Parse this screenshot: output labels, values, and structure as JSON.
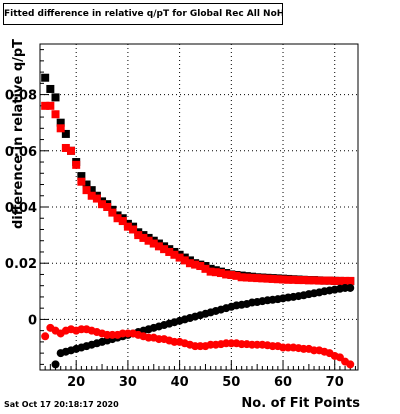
{
  "title": "Fitted difference in relative q/pT  for Global Rec All NoHits",
  "timestamp": "Sat Oct 17 20:18:17 2020",
  "chart_data": {
    "type": "scatter",
    "title": "Fitted difference in relative q/pT  for Global Rec All NoHits",
    "xlabel": "No. of Fit Points",
    "ylabel": "difference in relative q/pT",
    "xlim": [
      13,
      74.5
    ],
    "ylim": [
      -0.018,
      0.098
    ],
    "x_ticks": [
      20,
      30,
      40,
      50,
      60,
      70
    ],
    "x_tick_labels": [
      "20",
      "30",
      "40",
      "50",
      "60",
      "70"
    ],
    "y_ticks": [
      0,
      0.02,
      0.04,
      0.06,
      0.08
    ],
    "y_tick_labels": [
      "0",
      "0.02",
      "0.04",
      "0.06",
      "0.08"
    ],
    "grid": true,
    "legend": "none",
    "series": [
      {
        "color": "#000000",
        "marker": "square",
        "x": [
          14,
          15,
          16,
          17,
          18,
          19,
          20,
          21,
          22,
          23,
          24,
          25,
          26,
          27,
          28,
          29,
          30,
          31,
          32,
          33,
          34,
          35,
          36,
          37,
          38,
          39,
          40,
          41,
          42,
          43,
          44,
          45,
          46,
          47,
          48,
          49,
          50,
          51,
          52,
          53,
          54,
          55,
          56,
          57,
          58,
          59,
          60,
          61,
          62,
          63,
          64,
          65,
          66,
          67,
          68,
          69,
          70,
          71,
          72,
          73
        ],
        "y": [
          0.086,
          0.082,
          0.079,
          0.07,
          0.066,
          0.06,
          0.056,
          0.051,
          0.048,
          0.046,
          0.044,
          0.042,
          0.041,
          0.039,
          0.037,
          0.036,
          0.034,
          0.033,
          0.031,
          0.03,
          0.029,
          0.028,
          0.027,
          0.026,
          0.025,
          0.024,
          0.023,
          0.022,
          0.021,
          0.02,
          0.0195,
          0.019,
          0.018,
          0.0175,
          0.017,
          0.0165,
          0.016,
          0.0158,
          0.0156,
          0.0154,
          0.0152,
          0.015,
          0.0149,
          0.0148,
          0.0147,
          0.0146,
          0.0145,
          0.0144,
          0.0143,
          0.0142,
          0.0141,
          0.014,
          0.014,
          0.0139,
          0.0138,
          0.0138,
          0.0137,
          0.0137,
          0.0136,
          0.0136
        ]
      },
      {
        "color": "#ff0000",
        "marker": "square",
        "x": [
          14,
          15,
          16,
          17,
          18,
          19,
          20,
          21,
          22,
          23,
          24,
          25,
          26,
          27,
          28,
          29,
          30,
          31,
          32,
          33,
          34,
          35,
          36,
          37,
          38,
          39,
          40,
          41,
          42,
          43,
          44,
          45,
          46,
          47,
          48,
          49,
          50,
          51,
          52,
          53,
          54,
          55,
          56,
          57,
          58,
          59,
          60,
          61,
          62,
          63,
          64,
          65,
          66,
          67,
          68,
          69,
          70,
          71,
          72,
          73
        ],
        "y": [
          0.076,
          0.076,
          0.073,
          0.068,
          0.061,
          0.06,
          0.055,
          0.049,
          0.046,
          0.044,
          0.043,
          0.041,
          0.04,
          0.038,
          0.036,
          0.035,
          0.033,
          0.032,
          0.03,
          0.029,
          0.028,
          0.027,
          0.026,
          0.025,
          0.024,
          0.023,
          0.022,
          0.021,
          0.02,
          0.0195,
          0.019,
          0.018,
          0.017,
          0.0168,
          0.0165,
          0.016,
          0.0158,
          0.0155,
          0.015,
          0.0149,
          0.0148,
          0.0147,
          0.0146,
          0.0145,
          0.0144,
          0.0143,
          0.0142,
          0.0141,
          0.0141,
          0.014,
          0.014,
          0.0139,
          0.0139,
          0.0138,
          0.0138,
          0.0138,
          0.0137,
          0.0137,
          0.0137,
          0.0137
        ]
      },
      {
        "color": "#000000",
        "marker": "circle",
        "x": [
          16,
          17,
          18,
          19,
          20,
          21,
          22,
          23,
          24,
          25,
          26,
          27,
          28,
          29,
          30,
          31,
          32,
          33,
          34,
          35,
          36,
          37,
          38,
          39,
          40,
          41,
          42,
          43,
          44,
          45,
          46,
          47,
          48,
          49,
          50,
          51,
          52,
          53,
          54,
          55,
          56,
          57,
          58,
          59,
          60,
          61,
          62,
          63,
          64,
          65,
          66,
          67,
          68,
          69,
          70,
          71,
          72,
          73
        ],
        "y": [
          -0.016,
          -0.012,
          -0.0115,
          -0.011,
          -0.0105,
          -0.01,
          -0.0095,
          -0.009,
          -0.0085,
          -0.008,
          -0.0075,
          -0.007,
          -0.0065,
          -0.006,
          -0.0055,
          -0.005,
          -0.0045,
          -0.004,
          -0.0035,
          -0.003,
          -0.0025,
          -0.002,
          -0.0015,
          -0.001,
          -0.0005,
          0.0,
          0.0005,
          0.001,
          0.0015,
          0.002,
          0.0025,
          0.003,
          0.0035,
          0.004,
          0.0045,
          0.005,
          0.0052,
          0.0055,
          0.006,
          0.0062,
          0.0065,
          0.0068,
          0.007,
          0.0072,
          0.0075,
          0.0078,
          0.008,
          0.0083,
          0.0086,
          0.009,
          0.0093,
          0.0096,
          0.01,
          0.0103,
          0.0106,
          0.0109,
          0.0112,
          0.0112
        ]
      },
      {
        "color": "#ff0000",
        "marker": "circle",
        "x": [
          14,
          15,
          16,
          17,
          18,
          19,
          20,
          21,
          22,
          23,
          24,
          25,
          26,
          27,
          28,
          29,
          30,
          31,
          32,
          33,
          34,
          35,
          36,
          37,
          38,
          39,
          40,
          41,
          42,
          43,
          44,
          45,
          46,
          47,
          48,
          49,
          50,
          51,
          52,
          53,
          54,
          55,
          56,
          57,
          58,
          59,
          60,
          61,
          62,
          63,
          64,
          65,
          66,
          67,
          68,
          69,
          70,
          71,
          72,
          73
        ],
        "y": [
          -0.006,
          -0.003,
          -0.004,
          -0.005,
          -0.004,
          -0.0035,
          -0.004,
          -0.0035,
          -0.0035,
          -0.004,
          -0.0045,
          -0.005,
          -0.0055,
          -0.0055,
          -0.0055,
          -0.005,
          -0.005,
          -0.005,
          -0.0055,
          -0.006,
          -0.0065,
          -0.0065,
          -0.007,
          -0.007,
          -0.0075,
          -0.008,
          -0.008,
          -0.0085,
          -0.009,
          -0.0095,
          -0.0095,
          -0.0095,
          -0.009,
          -0.009,
          -0.0088,
          -0.0085,
          -0.0085,
          -0.0085,
          -0.0088,
          -0.0088,
          -0.009,
          -0.009,
          -0.009,
          -0.0092,
          -0.0095,
          -0.0095,
          -0.01,
          -0.01,
          -0.01,
          -0.0102,
          -0.0105,
          -0.0105,
          -0.011,
          -0.011,
          -0.0115,
          -0.012,
          -0.013,
          -0.0135,
          -0.015,
          -0.016
        ]
      }
    ]
  }
}
